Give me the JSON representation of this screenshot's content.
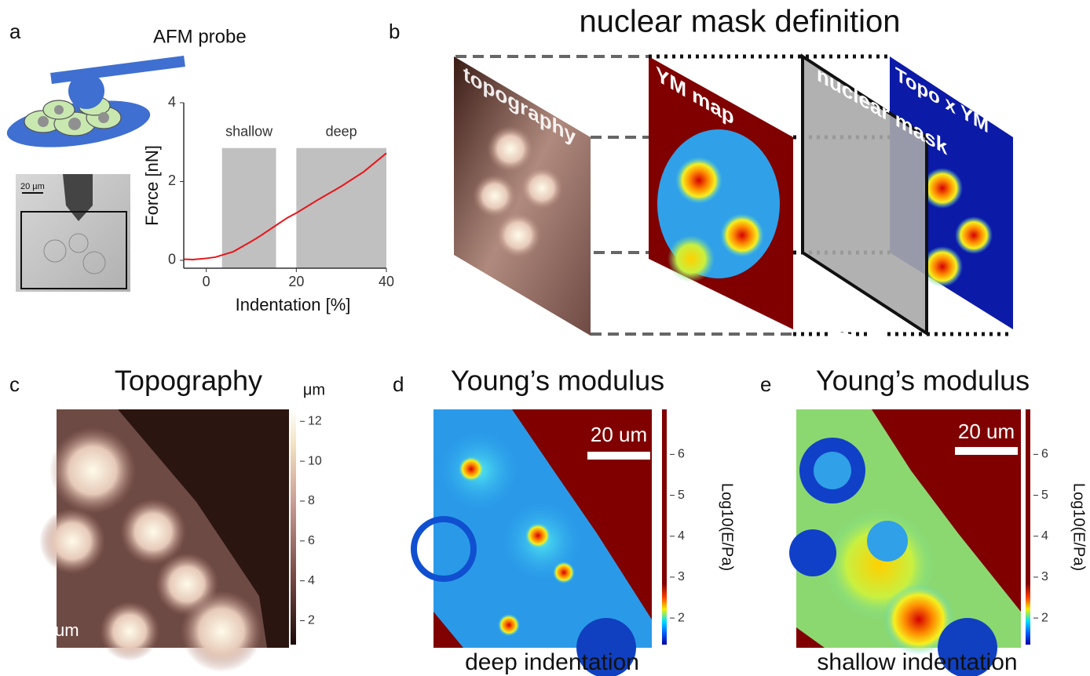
{
  "panel_a": {
    "label": "a",
    "probe_label": "AFM probe",
    "scale_bar": "20 µm",
    "chart": {
      "type": "line",
      "x_label": "Indentation [%]",
      "y_label": "Force [nN]",
      "xlim": [
        -5,
        40
      ],
      "ylim": [
        -0.2,
        4
      ],
      "xticks": [
        0,
        20,
        40
      ],
      "yticks": [
        0,
        2,
        4
      ],
      "color": "#e8141a",
      "x": [
        -5,
        -3,
        0,
        2,
        4,
        6,
        8,
        10,
        12,
        15,
        18,
        20,
        25,
        30,
        35,
        40
      ],
      "values": [
        0.03,
        0.02,
        0.05,
        0.08,
        0.15,
        0.22,
        0.35,
        0.48,
        0.62,
        0.85,
        1.08,
        1.2,
        1.55,
        1.88,
        2.25,
        2.72
      ],
      "bands": [
        {
          "label": "shallow",
          "start": 3.5,
          "end": 15.5,
          "top": 2.85
        },
        {
          "label": "deep",
          "start": 20,
          "end": 40,
          "top": 2.85
        }
      ]
    }
  },
  "panel_b": {
    "label": "b",
    "title": "nuclear mask definition",
    "layers": [
      "topography",
      "YM map",
      "nuclear mask",
      "Topo x YM"
    ]
  },
  "panel_c": {
    "label": "c",
    "title": "Topography",
    "corner_text": "um",
    "colorbar": {
      "unit": "μm",
      "lim": [
        0.8,
        12.6
      ],
      "ticks": [
        2,
        4,
        6,
        8,
        10,
        12
      ]
    }
  },
  "panel_d": {
    "label": "d",
    "title": "Young’s modulus",
    "scale_bar": "20 um",
    "caption": "deep indentation",
    "colorbar": {
      "label": "Log10(E/Pa)",
      "lim": [
        1.35,
        7.1
      ],
      "ticks": [
        2,
        3,
        4,
        5,
        6
      ]
    }
  },
  "panel_e": {
    "label": "e",
    "title": "Young’s modulus",
    "scale_bar": "20 um",
    "caption": "shallow indentation",
    "colorbar": {
      "label": "Log10(E/Pa)",
      "lim": [
        1.35,
        7.1
      ],
      "ticks": [
        2,
        3,
        4,
        5,
        6
      ]
    }
  }
}
